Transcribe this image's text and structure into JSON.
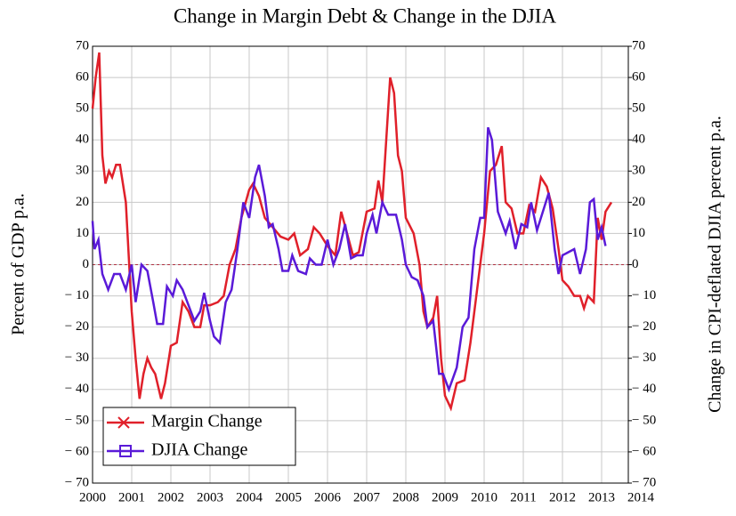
{
  "chart_data": {
    "type": "line",
    "title": "Change in Margin Debt & Change in the DJIA",
    "ylabel": "Percent of GDP p.a.",
    "y2label": "Change in CPI-deflated DJIA percent p.a.",
    "xlim": [
      2000,
      2014
    ],
    "xticks": [
      2000,
      2001,
      2002,
      2003,
      2004,
      2005,
      2006,
      2007,
      2008,
      2009,
      2010,
      2011,
      2012,
      2013,
      2014
    ],
    "ylim": [
      -70,
      70
    ],
    "yticks": [
      {
        "value": -70,
        "label": "− 70"
      },
      {
        "value": -60,
        "label": "− 60"
      },
      {
        "value": -50,
        "label": "− 50"
      },
      {
        "value": -40,
        "label": "− 40"
      },
      {
        "value": -30,
        "label": "− 30"
      },
      {
        "value": -20,
        "label": "− 20"
      },
      {
        "value": -10,
        "label": "− 10"
      },
      0,
      10,
      20,
      30,
      40,
      50,
      60,
      70
    ],
    "y2lim": [
      -70,
      70
    ],
    "y2ticks": [
      {
        "value": -70,
        "label": "− 70"
      },
      {
        "value": -60,
        "label": "− 60"
      },
      {
        "value": -50,
        "label": "− 50"
      },
      {
        "value": -40,
        "label": "− 40"
      },
      {
        "value": -30,
        "label": "− 30"
      },
      {
        "value": -20,
        "label": "− 20"
      },
      {
        "value": -10,
        "label": "− 10"
      },
      0,
      10,
      20,
      30,
      40,
      50,
      60,
      70
    ],
    "grid": true,
    "legend": "lower left",
    "series": [
      {
        "name": "Margin Change",
        "color": "#e0202a",
        "x": [
          2000.0,
          2000.08,
          2000.17,
          2000.25,
          2000.33,
          2000.42,
          2000.5,
          2000.6,
          2000.7,
          2000.85,
          2001.0,
          2001.1,
          2001.2,
          2001.3,
          2001.4,
          2001.5,
          2001.6,
          2001.75,
          2001.85,
          2002.0,
          2002.15,
          2002.3,
          2002.45,
          2002.6,
          2002.75,
          2002.85,
          2003.0,
          2003.2,
          2003.35,
          2003.5,
          2003.65,
          2003.8,
          2004.0,
          2004.1,
          2004.25,
          2004.4,
          2004.6,
          2004.8,
          2005.0,
          2005.15,
          2005.3,
          2005.5,
          2005.65,
          2005.8,
          2006.0,
          2006.2,
          2006.35,
          2006.5,
          2006.65,
          2006.8,
          2007.0,
          2007.2,
          2007.3,
          2007.4,
          2007.5,
          2007.6,
          2007.7,
          2007.8,
          2007.9,
          2008.0,
          2008.2,
          2008.35,
          2008.45,
          2008.55,
          2008.7,
          2008.8,
          2008.9,
          2009.0,
          2009.15,
          2009.3,
          2009.5,
          2009.65,
          2009.8,
          2010.0,
          2010.15,
          2010.3,
          2010.45,
          2010.55,
          2010.7,
          2010.85,
          2011.0,
          2011.15,
          2011.3,
          2011.45,
          2011.6,
          2011.75,
          2011.9,
          2012.0,
          2012.15,
          2012.3,
          2012.45,
          2012.55,
          2012.65,
          2012.8,
          2012.9,
          2013.0,
          2013.1,
          2013.25
        ],
        "values": [
          50,
          60,
          68,
          35,
          26,
          30,
          28,
          32,
          32,
          20,
          -15,
          -30,
          -43,
          -35,
          -30,
          -33,
          -35,
          -43,
          -38,
          -26,
          -25,
          -12,
          -15,
          -20,
          -20,
          -13,
          -13,
          -12,
          -10,
          0,
          5,
          15,
          24,
          26,
          22,
          15,
          12,
          9,
          8,
          10,
          3,
          5,
          12,
          10,
          6,
          3,
          17,
          10,
          3,
          4,
          17,
          18,
          27,
          20,
          40,
          60,
          55,
          35,
          30,
          15,
          10,
          0,
          -15,
          -20,
          -17,
          -10,
          -30,
          -42,
          -46,
          -38,
          -37,
          -25,
          -10,
          10,
          30,
          32,
          38,
          20,
          18,
          10,
          10,
          19,
          17,
          28,
          25,
          18,
          5,
          -5,
          -7,
          -10,
          -10,
          -14,
          -10,
          -12,
          15,
          8,
          17,
          20
        ]
      },
      {
        "name": "DJIA Change",
        "color": "#5a1ad8",
        "axis": "y2",
        "x": [
          2000.0,
          2000.05,
          2000.15,
          2000.25,
          2000.4,
          2000.55,
          2000.7,
          2000.85,
          2001.0,
          2001.1,
          2001.25,
          2001.4,
          2001.55,
          2001.65,
          2001.8,
          2001.9,
          2002.05,
          2002.15,
          2002.3,
          2002.45,
          2002.6,
          2002.75,
          2002.85,
          2003.0,
          2003.1,
          2003.25,
          2003.4,
          2003.55,
          2003.7,
          2003.85,
          2004.0,
          2004.15,
          2004.25,
          2004.4,
          2004.5,
          2004.6,
          2004.75,
          2004.85,
          2005.0,
          2005.1,
          2005.25,
          2005.45,
          2005.55,
          2005.7,
          2005.85,
          2006.0,
          2006.15,
          2006.3,
          2006.45,
          2006.6,
          2006.75,
          2006.9,
          2007.0,
          2007.15,
          2007.25,
          2007.4,
          2007.55,
          2007.75,
          2007.9,
          2008.0,
          2008.15,
          2008.3,
          2008.45,
          2008.55,
          2008.7,
          2008.85,
          2008.95,
          2009.1,
          2009.3,
          2009.45,
          2009.6,
          2009.75,
          2009.9,
          2010.0,
          2010.1,
          2010.2,
          2010.35,
          2010.55,
          2010.65,
          2010.8,
          2010.95,
          2011.1,
          2011.2,
          2011.35,
          2011.5,
          2011.65,
          2011.8,
          2011.9,
          2012.0,
          2012.15,
          2012.3,
          2012.45,
          2012.6,
          2012.7,
          2012.8,
          2012.9,
          2013.0,
          2013.1
        ],
        "values": [
          14,
          5,
          8,
          -3,
          -8,
          -3,
          -3,
          -8,
          0,
          -12,
          0,
          -2,
          -12,
          -19,
          -19,
          -7,
          -10,
          -5,
          -8,
          -13,
          -18,
          -15,
          -9,
          -18,
          -23,
          -25,
          -12,
          -8,
          5,
          20,
          15,
          28,
          32,
          22,
          12,
          13,
          5,
          -2,
          -2,
          3,
          -2,
          -3,
          2,
          0,
          0,
          8,
          0,
          5,
          13,
          2,
          3,
          3,
          10,
          16,
          10,
          20,
          16,
          16,
          8,
          0,
          -4,
          -5,
          -10,
          -20,
          -18,
          -35,
          -35,
          -40,
          -33,
          -20,
          -17,
          5,
          15,
          15,
          44,
          40,
          17,
          10,
          14,
          5,
          13,
          12,
          20,
          11,
          17,
          23,
          5,
          -3,
          3,
          4,
          5,
          -3,
          5,
          20,
          21,
          8,
          12,
          6
        ]
      }
    ]
  }
}
